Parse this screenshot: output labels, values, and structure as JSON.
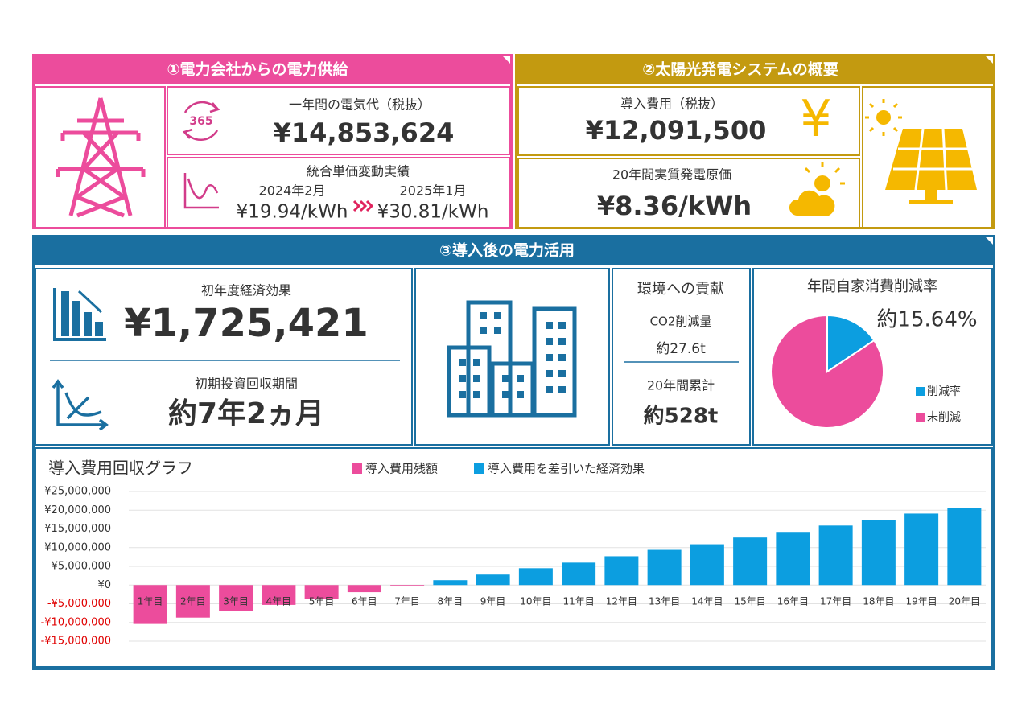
{
  "panel1": {
    "title": "①電力会社からの電力供給",
    "icon_text": "365",
    "annual_cost": {
      "label": "一年間の電気代（税抜）",
      "value": "¥14,853,624"
    },
    "unit_price": {
      "label": "統合単価変動実績",
      "from_date": "2024年2月",
      "from_price": "¥19.94/kWh",
      "to_date": "2025年1月",
      "to_price": "¥30.81/kWh"
    }
  },
  "panel2": {
    "title": "②太陽光発電システムの概要",
    "icon_text": "¥",
    "cost": {
      "label": "導入費用（税抜）",
      "value": "¥12,091,500"
    },
    "generation_cost": {
      "label": "20年間実質発電原価",
      "value": "¥8.36/kWh"
    }
  },
  "panel3": {
    "title": "③導入後の電力活用",
    "first_year": {
      "label": "初年度経済効果",
      "value": "¥1,725,421"
    },
    "payback": {
      "label": "初期投資回収期間",
      "value": "約7年2ヵ月"
    },
    "environment": {
      "title": "環境への貢献",
      "co2_label": "CO2削減量",
      "co2_value": "約27.6t",
      "total_label": "20年間累計",
      "total_value": "約528t"
    }
  },
  "chart_data": [
    {
      "type": "pie",
      "title": "年間自家消費削減率",
      "categories": [
        "削減率",
        "未削減"
      ],
      "values": [
        15.64,
        84.36
      ],
      "value_labels": [
        "約15.64%",
        null
      ],
      "colors": [
        "#0c9ee0",
        "#ec4c9c"
      ]
    },
    {
      "type": "bar",
      "title": "導入費用回収グラフ",
      "categories": [
        "1年目",
        "2年目",
        "3年目",
        "4年目",
        "5年目",
        "6年目",
        "7年目",
        "8年目",
        "9年目",
        "10年目",
        "11年目",
        "12年目",
        "13年目",
        "14年目",
        "15年目",
        "16年目",
        "17年目",
        "18年目",
        "19年目",
        "20年目"
      ],
      "series": [
        {
          "name": "導入費用残額",
          "color": "#ec4c9c",
          "values": [
            -10400000,
            -8700000,
            -7000000,
            -5300000,
            -3600000,
            -1900000,
            -300000,
            null,
            null,
            null,
            null,
            null,
            null,
            null,
            null,
            null,
            null,
            null,
            null,
            null
          ]
        },
        {
          "name": "導入費用を差引いた経済効果",
          "color": "#0c9ee0",
          "values": [
            null,
            null,
            null,
            null,
            null,
            null,
            null,
            1300000,
            2800000,
            4500000,
            6000000,
            7700000,
            9400000,
            10900000,
            12700000,
            14200000,
            15900000,
            17400000,
            19100000,
            20600000
          ]
        }
      ],
      "ylim": [
        -15000000,
        25000000
      ],
      "yticks": [
        {
          "value": 25000000,
          "label": "¥25,000,000"
        },
        {
          "value": 20000000,
          "label": "¥20,000,000"
        },
        {
          "value": 15000000,
          "label": "¥15,000,000"
        },
        {
          "value": 10000000,
          "label": "¥10,000,000"
        },
        {
          "value": 5000000,
          "label": "¥5,000,000"
        },
        {
          "value": 0,
          "label": "¥0"
        },
        {
          "value": -5000000,
          "label": "-¥5,000,000"
        },
        {
          "value": -10000000,
          "label": "-¥10,000,000"
        },
        {
          "value": -15000000,
          "label": "-¥15,000,000"
        }
      ],
      "grid": true,
      "negative_tick_color": "#e00000"
    }
  ]
}
